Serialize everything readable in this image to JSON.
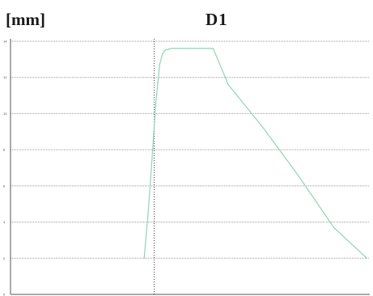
{
  "chart_data": {
    "type": "line",
    "title": "D1",
    "ylabel": "[mm]",
    "xlabel": "",
    "ylim": [
      0,
      14
    ],
    "xlim": [
      0,
      100
    ],
    "yticks": [
      0,
      2,
      4,
      6,
      8,
      10,
      12,
      14
    ],
    "ytick_labels": [
      "0",
      "2",
      "4",
      "6",
      "8",
      "10",
      "12",
      "14"
    ],
    "grid": true,
    "marker_x": 40,
    "colors": {
      "series": "#8fd4b4",
      "grid": "#9a9a9a",
      "axis": "#555555",
      "marker": "#333333"
    },
    "series": [
      {
        "x": [
          37.2,
          38.3,
          39.4,
          40.4,
          41.5,
          42.3,
          43.0,
          44.7,
          50.0,
          56.4,
          58.1,
          60.6,
          70.0,
          80.0,
          90.0,
          99.2
        ],
        "y": [
          2.0,
          4.5,
          7.5,
          10.5,
          12.7,
          13.3,
          13.5,
          13.6,
          13.6,
          13.6,
          12.8,
          11.6,
          9.3,
          6.6,
          3.7,
          2.0
        ]
      }
    ]
  }
}
